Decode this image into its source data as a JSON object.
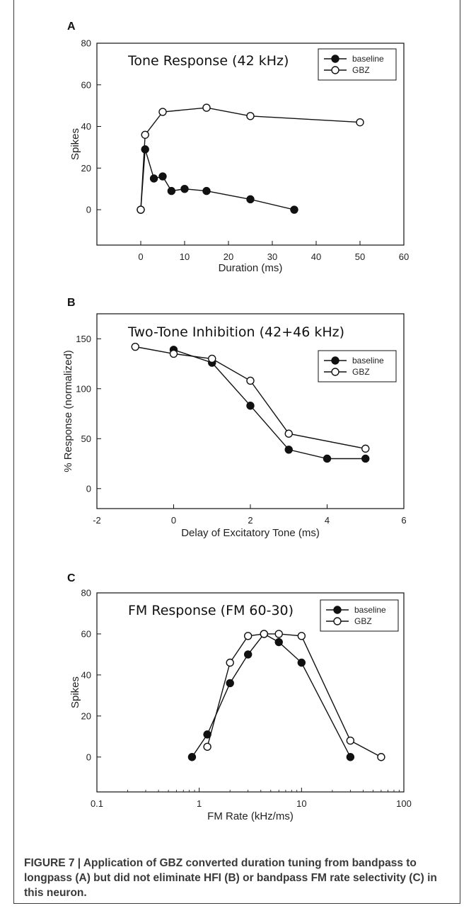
{
  "chart_data": [
    {
      "type": "line",
      "panel_label": "A",
      "title": "Tone Response (42 kHz)",
      "xlabel": "Duration (ms)",
      "ylabel": "Spikes",
      "xlim": [
        -10,
        60
      ],
      "ylim": [
        -17,
        80
      ],
      "xticks": [
        0,
        10,
        20,
        30,
        40,
        50,
        60
      ],
      "yticks": [
        0,
        20,
        40,
        60,
        80
      ],
      "xscale": "linear",
      "legend_position": "top-right",
      "series": [
        {
          "name": "baseline",
          "marker": "filled-circle",
          "x": [
            0,
            1,
            3,
            5,
            7,
            10,
            15,
            25,
            35
          ],
          "y": [
            0,
            29,
            15,
            16,
            9,
            10,
            9,
            5,
            0
          ]
        },
        {
          "name": "GBZ",
          "marker": "open-circle",
          "x": [
            0,
            1,
            5,
            15,
            25,
            50
          ],
          "y": [
            0,
            36,
            47,
            49,
            45,
            42
          ]
        }
      ]
    },
    {
      "type": "line",
      "panel_label": "B",
      "title": "Two-Tone Inhibition (42+46 kHz)",
      "xlabel": "Delay of Excitatory Tone (ms)",
      "ylabel": "% Response (normalized)",
      "xlim": [
        -2,
        6
      ],
      "ylim": [
        -20,
        175
      ],
      "xticks": [
        -2,
        0,
        2,
        4,
        6
      ],
      "yticks": [
        0,
        50,
        100,
        150
      ],
      "xscale": "linear",
      "legend_position": "top-right",
      "series": [
        {
          "name": "baseline",
          "marker": "filled-circle",
          "x": [
            0,
            1,
            2,
            3,
            4,
            5
          ],
          "y": [
            139,
            126,
            83,
            39,
            30,
            30
          ]
        },
        {
          "name": "GBZ",
          "marker": "open-circle",
          "x": [
            -1,
            0,
            1,
            2,
            3,
            5
          ],
          "y": [
            142,
            135,
            130,
            108,
            55,
            40
          ]
        }
      ]
    },
    {
      "type": "line",
      "panel_label": "C",
      "title": "FM Response (FM 60-30)",
      "xlabel": "FM Rate (kHz/ms)",
      "ylabel": "Spikes",
      "xlim": [
        0.1,
        100
      ],
      "ylim": [
        -17,
        80
      ],
      "xticks": [
        0.1,
        1,
        10,
        100
      ],
      "xtick_labels": [
        "0.1",
        "1",
        "10",
        "100"
      ],
      "yticks": [
        0,
        20,
        40,
        60,
        80
      ],
      "xscale": "log",
      "legend_position": "top-right",
      "series": [
        {
          "name": "baseline",
          "marker": "filled-circle",
          "x": [
            0.85,
            1.2,
            2,
            3,
            4.3,
            6,
            10,
            30
          ],
          "y": [
            0,
            11,
            36,
            50,
            60,
            56,
            46,
            0
          ]
        },
        {
          "name": "GBZ",
          "marker": "open-circle",
          "x": [
            1.2,
            2,
            3,
            4.3,
            6,
            10,
            30,
            60
          ],
          "y": [
            5,
            46,
            59,
            60,
            60,
            59,
            8,
            0
          ]
        }
      ]
    }
  ],
  "caption": "FIGURE 7 | Application of GBZ converted duration tuning from bandpass to longpass (A) but did not eliminate HFI (B) or bandpass FM rate selectivity (C) in this neuron."
}
